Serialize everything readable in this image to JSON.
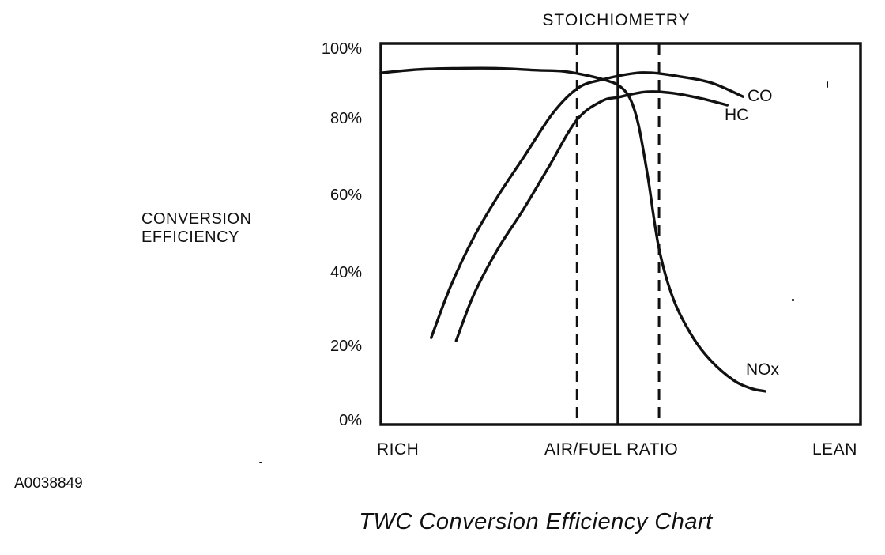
{
  "figure": {
    "id_label": "A0038849",
    "caption": "TWC Conversion Efficiency Chart"
  },
  "chart": {
    "stoichiometry_label": "STOICHIOMETRY",
    "y_axis_title_line1": "CONVERSION",
    "y_axis_title_line2": "EFFICIENCY",
    "y_tick_labels": [
      "100%",
      "80%",
      "60%",
      "40%",
      "20%",
      "0%"
    ],
    "x_axis_labels": {
      "left": "RICH",
      "center": "AIR/FUEL RATIO",
      "right": "LEAN"
    },
    "curve_labels": {
      "co": "CO",
      "hc": "HC",
      "nox": "NOx"
    },
    "line_color": "#111111"
  },
  "chart_data": {
    "type": "line",
    "title": "TWC Conversion Efficiency Chart",
    "xlabel": "AIR/FUEL RATIO (RICH to LEAN, qualitative 0-100 scale)",
    "ylabel": "CONVERSION EFFICIENCY",
    "xlim": [
      0,
      100
    ],
    "ylim": [
      0,
      100
    ],
    "grid": false,
    "y_tick_values": [
      100,
      80,
      60,
      40,
      20,
      0
    ],
    "x_tick_labels": [
      "RICH",
      "AIR/FUEL RATIO",
      "LEAN"
    ],
    "annotations": [
      "STOICHIOMETRY"
    ],
    "reference_lines": {
      "stoichiometry_solid_x": 49.4,
      "operating_window_dashed_x": [
        40.9,
        58.0
      ]
    },
    "series": [
      {
        "name": "CO",
        "points": [
          [
            10.5,
            22.3
          ],
          [
            14.5,
            36.0
          ],
          [
            19.4,
            49.4
          ],
          [
            24.4,
            60.4
          ],
          [
            30.1,
            71.5
          ],
          [
            35.9,
            82.8
          ],
          [
            41.2,
            89.6
          ],
          [
            46.6,
            91.9
          ],
          [
            52.4,
            93.4
          ],
          [
            56.5,
            93.6
          ],
          [
            62.3,
            92.6
          ],
          [
            68.9,
            90.9
          ],
          [
            75.5,
            87.2
          ]
        ]
      },
      {
        "name": "HC",
        "points": [
          [
            15.7,
            21.5
          ],
          [
            19.4,
            34.0
          ],
          [
            24.4,
            46.2
          ],
          [
            29.7,
            56.8
          ],
          [
            35.1,
            68.5
          ],
          [
            40.9,
            81.0
          ],
          [
            46.1,
            86.0
          ],
          [
            49.4,
            87.0
          ],
          [
            55.4,
            88.5
          ],
          [
            61.0,
            88.1
          ],
          [
            66.4,
            86.8
          ],
          [
            72.2,
            84.9
          ]
        ]
      },
      {
        "name": "NOx",
        "points": [
          [
            0,
            93.6
          ],
          [
            7.9,
            94.5
          ],
          [
            16.1,
            94.8
          ],
          [
            24.4,
            94.8
          ],
          [
            32.6,
            94.3
          ],
          [
            38.1,
            94.0
          ],
          [
            43.3,
            92.8
          ],
          [
            47.1,
            91.5
          ],
          [
            49.6,
            90.2
          ],
          [
            51.9,
            86.8
          ],
          [
            53.7,
            79.6
          ],
          [
            55.7,
            65.3
          ],
          [
            58.0,
            46.2
          ],
          [
            61.1,
            32.3
          ],
          [
            65.1,
            22.3
          ],
          [
            68.9,
            16.0
          ],
          [
            73.5,
            10.9
          ],
          [
            77.1,
            8.7
          ],
          [
            80.1,
            7.9
          ]
        ]
      }
    ]
  }
}
